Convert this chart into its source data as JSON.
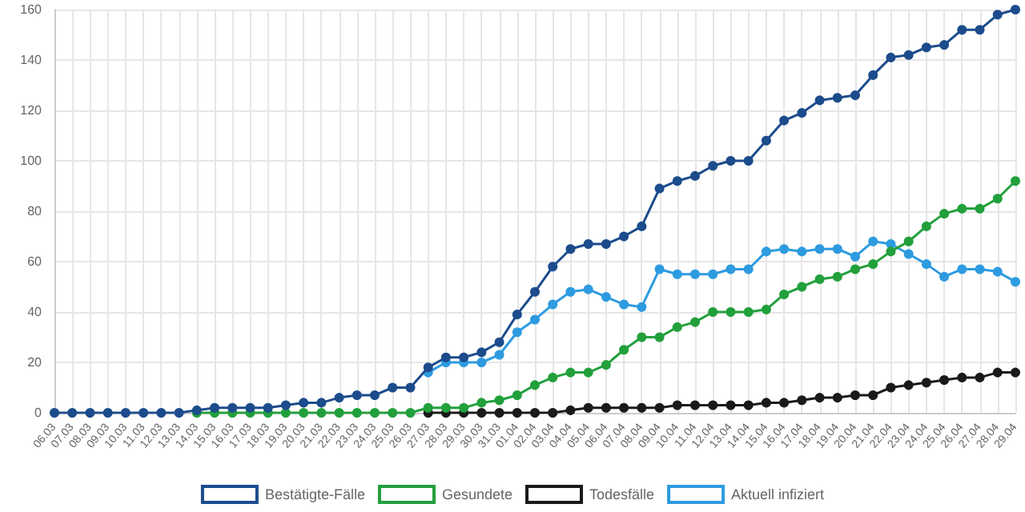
{
  "chart_data": {
    "type": "line",
    "categories": [
      "06.03",
      "07.03",
      "08.03",
      "09.03",
      "10.03",
      "11.03",
      "12.03",
      "13.03",
      "14.03",
      "15.03",
      "16.03",
      "17.03",
      "18.03",
      "19.03",
      "20.03",
      "21.03",
      "22.03",
      "23.03",
      "24.03",
      "25.03",
      "26.03",
      "27.03",
      "28.03",
      "29.03",
      "30.03",
      "31.03",
      "01.04",
      "02.04",
      "03.04",
      "04.04",
      "05.04",
      "06.04",
      "07.04",
      "08.04",
      "09.04",
      "10.04",
      "11.04",
      "12.04",
      "13.04",
      "14.04",
      "15.04",
      "16.04",
      "17.04",
      "18.04",
      "19.04",
      "20.04",
      "21.04",
      "22.04",
      "23.04",
      "24.04",
      "25.04",
      "26.04",
      "27.04",
      "28.04",
      "29.04"
    ],
    "series": [
      {
        "name": "Bestätigte-Fälle",
        "color": "#1c4c8c",
        "values": [
          0,
          0,
          0,
          0,
          0,
          0,
          0,
          0,
          1,
          2,
          2,
          2,
          2,
          3,
          4,
          4,
          6,
          7,
          7,
          10,
          10,
          18,
          22,
          22,
          24,
          28,
          39,
          48,
          58,
          65,
          67,
          67,
          70,
          74,
          89,
          92,
          94,
          98,
          100,
          100,
          108,
          116,
          119,
          124,
          125,
          126,
          134,
          141,
          142,
          145,
          146,
          152,
          152,
          158,
          160
        ]
      },
      {
        "name": "Gesundete",
        "color": "#22a03c",
        "values": [
          null,
          null,
          null,
          null,
          null,
          null,
          null,
          null,
          0,
          0,
          0,
          0,
          0,
          0,
          0,
          0,
          0,
          0,
          0,
          0,
          0,
          2,
          2,
          2,
          4,
          5,
          7,
          11,
          14,
          16,
          16,
          19,
          25,
          30,
          30,
          34,
          36,
          40,
          40,
          40,
          41,
          47,
          50,
          53,
          54,
          57,
          59,
          64,
          68,
          74,
          79,
          81,
          81,
          85,
          92
        ]
      },
      {
        "name": "Todesfälle",
        "color": "#1a1a1a",
        "values": [
          null,
          null,
          null,
          null,
          null,
          null,
          null,
          null,
          null,
          null,
          null,
          null,
          null,
          null,
          null,
          null,
          null,
          null,
          null,
          null,
          null,
          0,
          0,
          0,
          0,
          0,
          0,
          0,
          0,
          1,
          2,
          2,
          2,
          2,
          2,
          3,
          3,
          3,
          3,
          3,
          4,
          4,
          5,
          6,
          6,
          7,
          7,
          10,
          11,
          12,
          13,
          14,
          14,
          16,
          16
        ]
      },
      {
        "name": "Aktuell infiziert",
        "color": "#2e9be0",
        "values": [
          null,
          null,
          null,
          null,
          null,
          null,
          null,
          null,
          null,
          null,
          null,
          null,
          null,
          null,
          null,
          null,
          null,
          null,
          null,
          null,
          null,
          16,
          20,
          20,
          20,
          23,
          32,
          37,
          43,
          48,
          49,
          46,
          43,
          42,
          57,
          55,
          55,
          55,
          57,
          57,
          64,
          65,
          64,
          65,
          65,
          62,
          68,
          67,
          63,
          59,
          54,
          57,
          57,
          56,
          52
        ]
      }
    ],
    "ylim": [
      0,
      160
    ],
    "yticks": [
      0,
      20,
      40,
      60,
      80,
      100,
      120,
      140,
      160
    ],
    "grid": true,
    "legend": "bottom",
    "marker": "circle",
    "line_style": "solid"
  }
}
